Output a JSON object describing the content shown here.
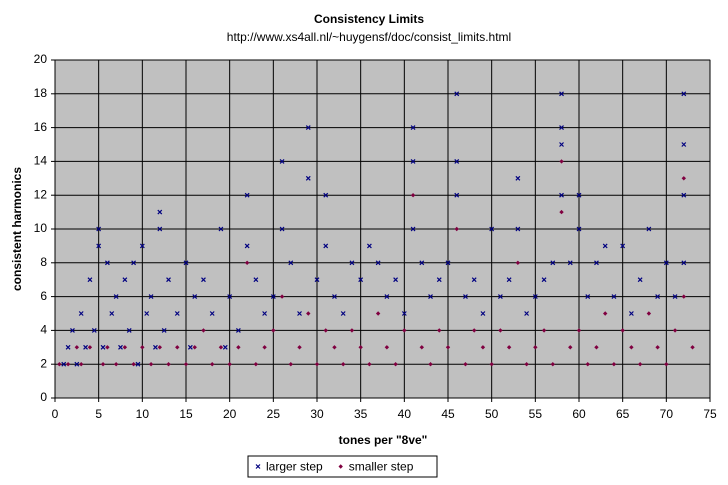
{
  "chart_data": {
    "type": "scatter",
    "title": "Consistency Limits",
    "subtitle": "http://www.xs4all.nl/~huygensf/doc/consist_limits.html",
    "x_label": "tones per \"8ve\"",
    "y_label": "consistent harmonics",
    "xlim": [
      0,
      75
    ],
    "xticks": [
      0,
      5,
      10,
      15,
      20,
      25,
      30,
      35,
      40,
      45,
      50,
      55,
      60,
      65,
      70,
      75
    ],
    "ylim": [
      0,
      20
    ],
    "yticks": [
      0,
      2,
      4,
      6,
      8,
      10,
      12,
      14,
      16,
      18,
      20
    ],
    "grid": true,
    "legend": "bottom",
    "series": [
      {
        "name": "larger step",
        "color": "#000080",
        "marker": "x",
        "x": [
          1,
          1.5,
          2,
          2.5,
          3,
          3.5,
          4,
          4.5,
          5,
          5,
          5.5,
          6,
          6.5,
          7,
          7.5,
          8,
          8.5,
          9,
          9.5,
          10,
          10.5,
          11,
          11.5,
          12,
          12,
          12.5,
          13,
          14,
          15,
          15.5,
          16,
          17,
          18,
          19,
          19.5,
          20,
          21,
          22,
          22,
          23,
          24,
          25,
          26,
          26,
          27,
          28,
          29,
          29,
          30,
          31,
          31,
          32,
          33,
          34,
          35,
          36,
          37,
          38,
          39,
          40,
          41,
          41,
          41,
          42,
          43,
          44,
          45,
          46,
          46,
          46,
          47,
          48,
          49,
          50,
          51,
          52,
          53,
          53,
          54,
          55,
          56,
          57,
          58,
          58,
          58,
          58,
          59,
          60,
          60,
          61,
          62,
          63,
          64,
          65,
          66,
          67,
          68,
          69,
          70,
          71,
          72,
          72,
          72,
          72
        ],
        "values": [
          2,
          3,
          4,
          2,
          5,
          3,
          7,
          4,
          10,
          9,
          3,
          8,
          5,
          6,
          3,
          7,
          4,
          8,
          2,
          9,
          5,
          6,
          3,
          11,
          10,
          4,
          7,
          5,
          8,
          3,
          6,
          7,
          5,
          10,
          3,
          6,
          4,
          12,
          9,
          7,
          5,
          6,
          14,
          10,
          8,
          5,
          16,
          13,
          7,
          12,
          9,
          6,
          5,
          8,
          7,
          9,
          8,
          6,
          7,
          5,
          16,
          14,
          10,
          8,
          6,
          7,
          8,
          18,
          14,
          12,
          6,
          7,
          5,
          10,
          6,
          7,
          13,
          10,
          5,
          6,
          7,
          8,
          18,
          16,
          15,
          12,
          8,
          12,
          10,
          6,
          8,
          9,
          6,
          9,
          5,
          7,
          10,
          6,
          8,
          6,
          18,
          15,
          12,
          8
        ]
      },
      {
        "name": "smaller step",
        "color": "#800040",
        "marker": "diamond",
        "x": [
          0.5,
          1.5,
          2.5,
          3,
          4,
          5.5,
          6,
          7,
          8,
          9,
          10,
          11,
          12,
          13,
          14,
          15,
          16,
          17,
          18,
          19,
          20,
          21,
          22,
          23,
          24,
          25,
          26,
          27,
          28,
          29,
          30,
          31,
          32,
          33,
          34,
          35,
          36,
          37,
          38,
          39,
          40,
          41,
          42,
          43,
          44,
          45,
          46,
          47,
          48,
          49,
          50,
          51,
          52,
          53,
          54,
          55,
          56,
          57,
          58,
          58,
          59,
          60,
          61,
          62,
          63,
          64,
          65,
          66,
          67,
          68,
          69,
          70,
          71,
          72,
          72,
          73
        ],
        "values": [
          2,
          2,
          3,
          2,
          3,
          2,
          3,
          2,
          3,
          2,
          3,
          2,
          3,
          2,
          3,
          2,
          3,
          4,
          2,
          3,
          2,
          3,
          8,
          2,
          3,
          4,
          6,
          2,
          3,
          5,
          2,
          4,
          3,
          2,
          4,
          3,
          2,
          5,
          3,
          2,
          4,
          12,
          3,
          2,
          4,
          3,
          10,
          2,
          4,
          3,
          2,
          4,
          3,
          8,
          2,
          3,
          4,
          2,
          14,
          11,
          3,
          4,
          2,
          3,
          5,
          2,
          4,
          3,
          2,
          5,
          3,
          2,
          4,
          13,
          6,
          3
        ]
      }
    ]
  }
}
